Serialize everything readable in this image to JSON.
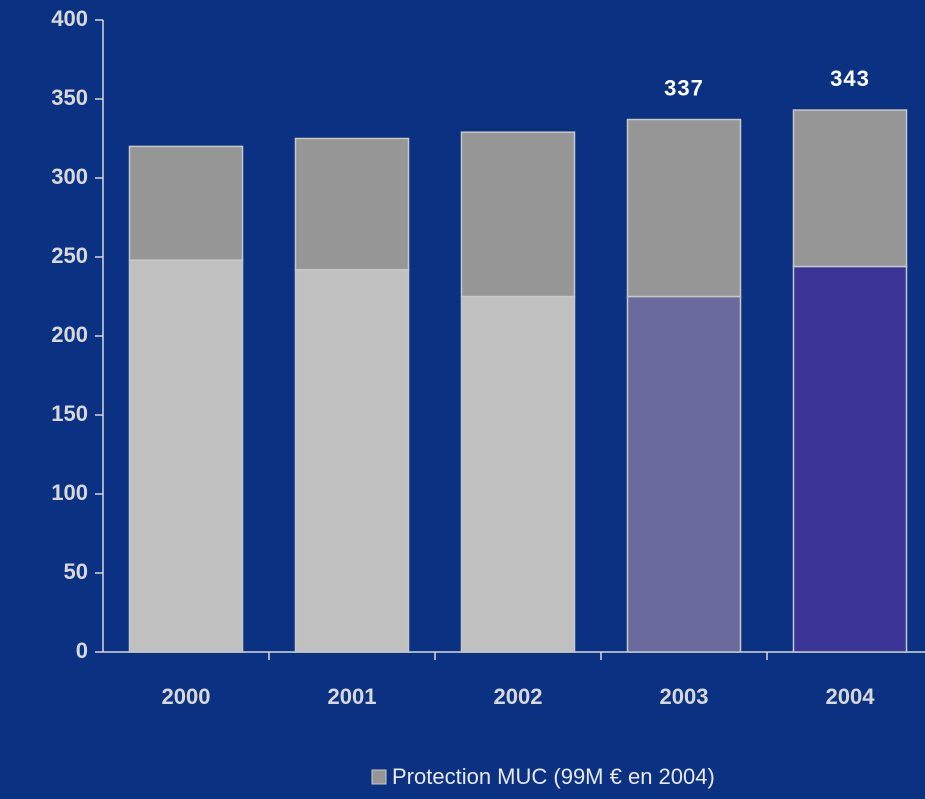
{
  "chart_data": {
    "type": "stacked_bar",
    "categories": [
      "2000",
      "2001",
      "2002",
      "2003",
      "2004"
    ],
    "series": [
      {
        "colors": [
          "#c0c0c0",
          "#c0c0c0",
          "#c0c0c0",
          "#6a6a9c",
          "#3a3596"
        ],
        "values": [
          248,
          242,
          225,
          225,
          244
        ]
      },
      {
        "name": "Protection MUC (99M € en 2004)",
        "color": "#969696",
        "values": [
          72,
          83,
          104,
          112,
          99
        ]
      }
    ],
    "totals": [
      null,
      null,
      null,
      337,
      343
    ],
    "ylim": [
      0,
      400
    ],
    "yticks": [
      0,
      50,
      100,
      150,
      200,
      250,
      300,
      350,
      400
    ],
    "legend": "bottom"
  }
}
